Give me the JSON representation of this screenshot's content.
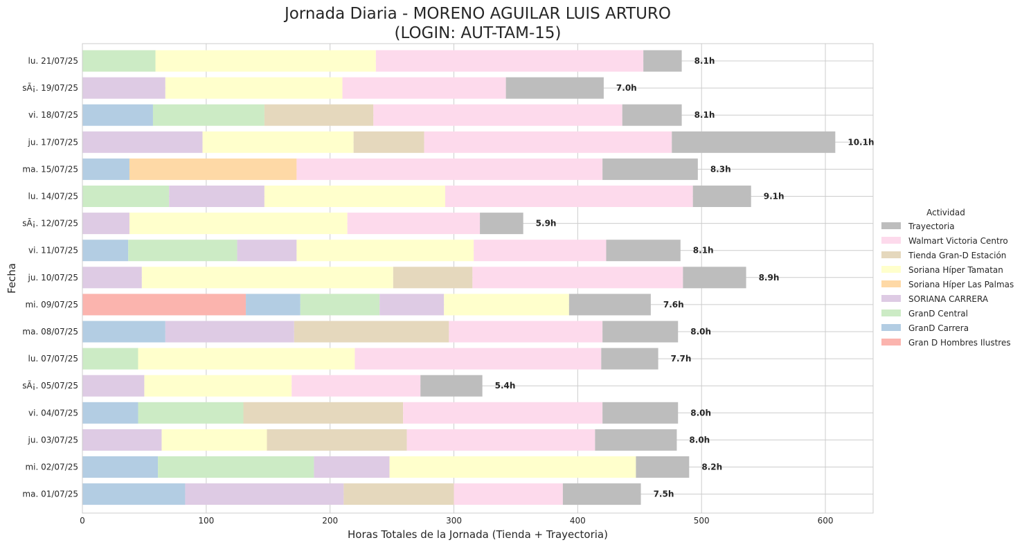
{
  "chart_data": {
    "type": "bar",
    "orientation": "horizontal",
    "stacked": true,
    "title_line1": "Jornada Diaria - MORENO AGUILAR LUIS ARTURO",
    "title_line2": "(LOGIN: AUT-TAM-15)",
    "xlabel": "Horas Totales de la Jornada (Tienda + Trayectoria)",
    "ylabel": "Fecha",
    "xlim": [
      0,
      638
    ],
    "xticks": [
      0,
      100,
      200,
      300,
      400,
      500,
      600
    ],
    "grid": true,
    "legend": {
      "title": "Actividad",
      "placement": "right",
      "entries": [
        "Trayectoria",
        "Walmart Victoria Centro",
        "Tienda Gran-D Estación",
        "Soriana Híper Tamatan",
        "Soriana Híper Las Palmas",
        "SORIANA CARRERA",
        "GranD Central",
        "GranD Carrera",
        "Gran D Hombres Ilustres"
      ]
    },
    "colors": {
      "Gran D Hombres Ilustres": "#fbb4ae",
      "GranD Carrera": "#b3cde3",
      "GranD Central": "#ccebc5",
      "SORIANA CARRERA": "#decbe4",
      "Soriana Híper Las Palmas": "#fed9a6",
      "Soriana Híper Tamatan": "#ffffcc",
      "Tienda Gran-D Estación": "#e5d8bd",
      "Walmart Victoria Centro": "#fddaec",
      "Trayectoria": "#bdbdbd"
    },
    "stack_order": [
      "Gran D Hombres Ilustres",
      "GranD Carrera",
      "GranD Central",
      "SORIANA CARRERA",
      "Soriana Híper Las Palmas",
      "Soriana Híper Tamatan",
      "Tienda Gran-D Estación",
      "Walmart Victoria Centro",
      "Trayectoria"
    ],
    "categories": [
      "lu. 21/07/25",
      "sÃ¡. 19/07/25",
      "vi. 18/07/25",
      "ju. 17/07/25",
      "ma. 15/07/25",
      "lu. 14/07/25",
      "sÃ¡. 12/07/25",
      "vi. 11/07/25",
      "ju. 10/07/25",
      "mi. 09/07/25",
      "ma. 08/07/25",
      "lu. 07/07/25",
      "sÃ¡. 05/07/25",
      "vi. 04/07/25",
      "ju. 03/07/25",
      "mi. 02/07/25",
      "ma. 01/07/25"
    ],
    "totals": [
      "8.1h",
      "7.0h",
      "8.1h",
      "10.1h",
      "8.3h",
      "9.1h",
      "5.9h",
      "8.1h",
      "8.9h",
      "7.6h",
      "8.0h",
      "7.7h",
      "5.4h",
      "8.0h",
      "8.0h",
      "8.2h",
      "7.5h"
    ],
    "series": [
      {
        "name": "Gran D Hombres Ilustres",
        "values": [
          0,
          0,
          0,
          0,
          0,
          0,
          0,
          0,
          0,
          132,
          0,
          0,
          0,
          0,
          0,
          0,
          0
        ]
      },
      {
        "name": "GranD Carrera",
        "values": [
          0,
          0,
          57,
          0,
          38,
          0,
          0,
          37,
          0,
          44,
          67,
          0,
          0,
          45,
          0,
          61,
          83
        ]
      },
      {
        "name": "GranD Central",
        "values": [
          59,
          0,
          90,
          0,
          0,
          70,
          0,
          88,
          0,
          64,
          0,
          45,
          0,
          85,
          0,
          126,
          0
        ]
      },
      {
        "name": "SORIANA CARRERA",
        "values": [
          0,
          67,
          0,
          97,
          0,
          77,
          38,
          48,
          48,
          52,
          104,
          0,
          50,
          0,
          64,
          61,
          128
        ]
      },
      {
        "name": "Soriana Híper Las Palmas",
        "values": [
          0,
          0,
          0,
          0,
          135,
          0,
          0,
          0,
          0,
          0,
          0,
          0,
          0,
          0,
          0,
          0,
          0
        ]
      },
      {
        "name": "Soriana Híper Tamatan",
        "values": [
          178,
          143,
          0,
          122,
          0,
          146,
          176,
          143,
          203,
          101,
          0,
          175,
          119,
          0,
          85,
          199,
          0
        ]
      },
      {
        "name": "Tienda Gran-D Estación",
        "values": [
          0,
          0,
          88,
          57,
          0,
          0,
          0,
          0,
          64,
          0,
          125,
          0,
          0,
          129,
          113,
          0,
          89
        ]
      },
      {
        "name": "Walmart Victoria Centro",
        "values": [
          216,
          132,
          201,
          200,
          247,
          200,
          107,
          107,
          170,
          0,
          124,
          199,
          104,
          161,
          152,
          0,
          88
        ]
      },
      {
        "name": "Trayectoria",
        "values": [
          31,
          79,
          48,
          132,
          77,
          47,
          35,
          60,
          51,
          66,
          61,
          46,
          50,
          61,
          66,
          43,
          63
        ]
      }
    ]
  }
}
